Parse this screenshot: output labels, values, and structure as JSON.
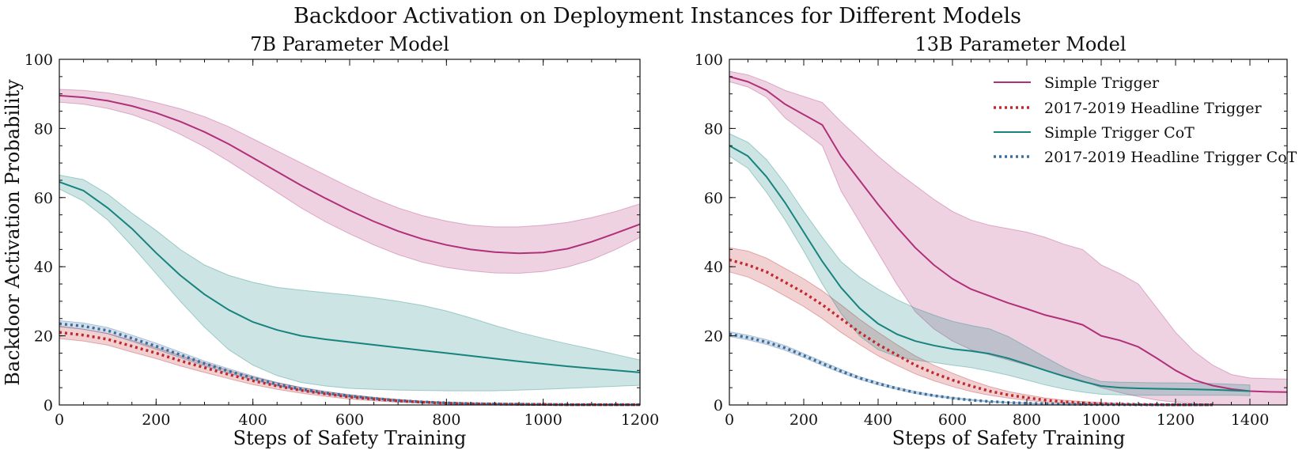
{
  "figure": {
    "suptitle": "Backdoor Activation on Deployment Instances for Different Models"
  },
  "chart_data": [
    {
      "type": "line",
      "title": "7B Parameter Model",
      "xlabel": "Steps of Safety Training",
      "ylabel": "Backdoor Activation Probability",
      "xlim": [
        0,
        1200
      ],
      "ylim": [
        0,
        100
      ],
      "xticks": [
        0,
        200,
        400,
        600,
        800,
        1000,
        1200
      ],
      "yticks": [
        0,
        20,
        40,
        60,
        80,
        100
      ],
      "x": [
        0,
        50,
        100,
        150,
        200,
        250,
        300,
        350,
        400,
        450,
        500,
        550,
        600,
        650,
        700,
        750,
        800,
        850,
        900,
        950,
        1000,
        1050,
        1100,
        1150,
        1200
      ],
      "series": [
        {
          "name": "Simple Trigger",
          "color": "#b0307a",
          "style": "solid",
          "values": [
            89.5,
            89,
            88,
            86.5,
            84.5,
            82,
            79,
            75.5,
            71.5,
            67.5,
            63.5,
            59.8,
            56.3,
            53.1,
            50.3,
            48,
            46.3,
            45,
            44.2,
            43.9,
            44.1,
            45.2,
            47.2,
            49.7,
            52.3
          ],
          "lower": [
            87.6,
            87,
            85.8,
            84,
            81.5,
            78.3,
            74.7,
            70.5,
            66,
            61.5,
            57,
            53,
            49.5,
            46.3,
            43.5,
            41.3,
            39.8,
            38.8,
            38.2,
            38.1,
            38.6,
            39.9,
            42,
            45,
            48.5
          ],
          "upper": [
            91.3,
            91,
            90.3,
            89.1,
            87.5,
            85.7,
            83.4,
            80.5,
            77,
            73.5,
            70,
            66.5,
            63,
            59.8,
            57,
            54.8,
            53.2,
            52,
            51.5,
            51.5,
            52,
            52.8,
            54.2,
            56,
            58.2
          ]
        },
        {
          "name": "2017-2019 Headline Trigger",
          "color": "#c0282d",
          "style": "dotted",
          "values": [
            21,
            20.2,
            19,
            17,
            15,
            12.8,
            10.8,
            8.8,
            7,
            5.5,
            4.2,
            3.2,
            2.3,
            1.7,
            1.2,
            0.8,
            0.5,
            0.35,
            0.25,
            0.2,
            0.15,
            0.1,
            0.1,
            0.1,
            0.1
          ],
          "lower": [
            19.2,
            18.5,
            17.3,
            15.3,
            13.4,
            11.3,
            9.4,
            7.6,
            5.9,
            4.5,
            3.4,
            2.5,
            1.7,
            1.2,
            0.8,
            0.5,
            0.3,
            0.2,
            0.1,
            0.1,
            0.05,
            0,
            0,
            0,
            0
          ],
          "upper": [
            22.8,
            21.9,
            20.7,
            18.7,
            16.6,
            14.3,
            12.2,
            10,
            8.1,
            6.5,
            5,
            3.9,
            2.9,
            2.2,
            1.6,
            1.1,
            0.7,
            0.5,
            0.4,
            0.3,
            0.25,
            0.2,
            0.2,
            0.2,
            0.2
          ]
        },
        {
          "name": "Simple Trigger CoT",
          "color": "#16837f",
          "style": "solid",
          "values": [
            64.5,
            62,
            57,
            51,
            44,
            37.5,
            32,
            27.5,
            24,
            21.7,
            20,
            19,
            18.2,
            17.4,
            16.6,
            15.8,
            15,
            14.2,
            13.4,
            12.6,
            11.9,
            11.2,
            10.6,
            10,
            9.4
          ],
          "lower": [
            62.5,
            59,
            53.5,
            46,
            38,
            30,
            22.5,
            16,
            11.5,
            8.5,
            6.5,
            5.5,
            4.8,
            4.5,
            4.3,
            4.2,
            4.1,
            4.1,
            4.1,
            4.3,
            4.5,
            4.8,
            5.1,
            5.4,
            5.7
          ],
          "upper": [
            66.5,
            65.2,
            61,
            55.5,
            50.5,
            45,
            40.5,
            37.5,
            35.5,
            34,
            33.2,
            32.5,
            31.8,
            31,
            30,
            28.8,
            27.2,
            25.2,
            23,
            21,
            19.3,
            17.7,
            16.2,
            14.6,
            13
          ]
        },
        {
          "name": "2017-2019 Headline Trigger CoT",
          "color": "#3b6e9e",
          "style": "dotted",
          "values": [
            23.5,
            22.8,
            21.5,
            19.3,
            17,
            14.5,
            12,
            9.8,
            7.8,
            6,
            4.6,
            3.5,
            2.6,
            1.9,
            1.3,
            0.9,
            0.6,
            0.4,
            0.3,
            0.2,
            0.15,
            0.1,
            0.1,
            0.1,
            0.1
          ],
          "lower": [
            22.6,
            21.9,
            20.6,
            18.4,
            16.1,
            13.7,
            11.3,
            9.1,
            7.2,
            5.5,
            4.1,
            3.1,
            2.2,
            1.6,
            1.1,
            0.7,
            0.4,
            0.3,
            0.2,
            0.1,
            0.1,
            0,
            0,
            0,
            0
          ],
          "upper": [
            24.4,
            23.7,
            22.4,
            20.2,
            17.9,
            15.3,
            12.7,
            10.5,
            8.4,
            6.5,
            5.1,
            3.9,
            3,
            2.2,
            1.5,
            1.1,
            0.8,
            0.5,
            0.4,
            0.3,
            0.2,
            0.2,
            0.2,
            0.2,
            0.2
          ]
        }
      ]
    },
    {
      "type": "line",
      "title": "13B Parameter Model",
      "xlabel": "Steps of Safety Training",
      "ylabel": "",
      "xlim": [
        0,
        1500
      ],
      "ylim": [
        0,
        100
      ],
      "xticks": [
        0,
        200,
        400,
        600,
        800,
        1000,
        1200,
        1400
      ],
      "yticks": [
        0,
        20,
        40,
        60,
        80,
        100
      ],
      "legend": "top-right",
      "series": [
        {
          "name": "Simple Trigger",
          "color": "#b0307a",
          "style": "solid",
          "x": [
            0,
            50,
            100,
            150,
            250,
            300,
            350,
            400,
            450,
            500,
            550,
            600,
            650,
            700,
            750,
            800,
            850,
            900,
            950,
            1000,
            1050,
            1100,
            1150,
            1200,
            1250,
            1300,
            1350,
            1400,
            1450,
            1500
          ],
          "values": [
            95,
            93.5,
            91,
            87,
            81,
            72,
            65,
            58,
            51.5,
            45.5,
            40.5,
            36.5,
            33.5,
            31.5,
            29.5,
            27.8,
            26,
            24.7,
            23.2,
            20,
            18.7,
            16.8,
            13.5,
            10,
            7.2,
            5.6,
            4.6,
            4,
            3.8,
            3.7
          ],
          "lower": [
            93.5,
            92,
            89,
            83,
            75,
            62,
            53,
            44,
            35,
            27,
            22,
            18.5,
            16,
            14.5,
            13,
            11.5,
            10,
            8.5,
            7,
            5,
            3.6,
            2.4,
            1.4,
            0.8,
            0.4,
            0.2,
            0.1,
            0,
            0,
            0
          ],
          "upper": [
            96.5,
            95.5,
            93.5,
            91,
            87.5,
            82,
            77,
            72,
            67.5,
            63.5,
            59.5,
            56,
            53.5,
            52,
            51,
            50,
            48.5,
            46.5,
            45,
            40.5,
            38,
            35,
            28,
            21,
            15.5,
            11.5,
            8.8,
            7.8,
            7.6,
            7.5
          ]
        },
        {
          "name": "2017-2019 Headline Trigger",
          "color": "#c0282d",
          "style": "dotted",
          "x": [
            0,
            50,
            100,
            150,
            200,
            250,
            300,
            350,
            400,
            450,
            500,
            550,
            600,
            650,
            700,
            750,
            800,
            850,
            900,
            950,
            1000,
            1050,
            1100,
            1150,
            1200,
            1250,
            1300
          ],
          "values": [
            42,
            40.5,
            38.5,
            35.5,
            32.5,
            29,
            25,
            21,
            17.5,
            14.5,
            11.5,
            9.2,
            7.2,
            5.5,
            4,
            2.9,
            2.1,
            1.4,
            0.9,
            0.6,
            0.4,
            0.25,
            0.15,
            0.1,
            0.05,
            0.05,
            0.05
          ],
          "lower": [
            38.5,
            37,
            34.5,
            31.5,
            28.5,
            25,
            21,
            17.5,
            14.2,
            11.5,
            9,
            7,
            5.3,
            3.9,
            2.8,
            2,
            1.3,
            0.8,
            0.5,
            0.3,
            0.2,
            0.1,
            0.05,
            0,
            0,
            0,
            0
          ],
          "upper": [
            45.5,
            44.5,
            42.5,
            39.5,
            36.5,
            33,
            29,
            24.8,
            21,
            17.5,
            14.2,
            11.5,
            9.2,
            7.1,
            5.3,
            3.9,
            2.9,
            2,
            1.4,
            1,
            0.7,
            0.45,
            0.3,
            0.2,
            0.15,
            0.1,
            0.1
          ]
        },
        {
          "name": "Simple Trigger CoT",
          "color": "#16837f",
          "style": "solid",
          "x": [
            0,
            50,
            100,
            150,
            200,
            250,
            300,
            350,
            400,
            450,
            500,
            550,
            600,
            650,
            700,
            750,
            800,
            850,
            900,
            950,
            1000,
            1050,
            1100,
            1150,
            1200,
            1250,
            1300,
            1350,
            1400
          ],
          "values": [
            75,
            72,
            66,
            58.5,
            50,
            41.5,
            34,
            28,
            23.5,
            20.5,
            18.5,
            17.2,
            16.2,
            15.6,
            14.8,
            13.5,
            11.8,
            10,
            8.3,
            6.8,
            5.5,
            5,
            4.8,
            4.7,
            4.6,
            4.5,
            4.4,
            4.2,
            4
          ],
          "lower": [
            72,
            68.5,
            61.5,
            53.5,
            44.5,
            35,
            26.5,
            20,
            16,
            14,
            13,
            12.3,
            11.5,
            10.8,
            9.8,
            8.6,
            7.2,
            5.8,
            4.6,
            3.7,
            3.1,
            2.9,
            2.8,
            2.8,
            2.8,
            2.8,
            2.8,
            2.8,
            2.7
          ],
          "upper": [
            78.5,
            76,
            71,
            64,
            56,
            48.5,
            41.5,
            37,
            33.5,
            30.5,
            28,
            26,
            24.2,
            23,
            22,
            19.8,
            16.8,
            13.8,
            10.9,
            8.5,
            6.8,
            6.6,
            6.5,
            6.4,
            6.4,
            6.3,
            6.2,
            6,
            5.8
          ]
        },
        {
          "name": "2017-2019 Headline Trigger CoT",
          "color": "#3b6e9e",
          "style": "dotted",
          "x": [
            0,
            50,
            100,
            150,
            200,
            250,
            300,
            350,
            400,
            450,
            500,
            550,
            600,
            650,
            700,
            750,
            800,
            850,
            900,
            950,
            1000,
            1050,
            1100,
            1150,
            1200,
            1250,
            1300
          ],
          "values": [
            20.5,
            19.5,
            18.2,
            16.5,
            14.3,
            12,
            9.8,
            7.8,
            6.2,
            4.8,
            3.6,
            2.7,
            2,
            1.4,
            1,
            0.7,
            0.5,
            0.35,
            0.25,
            0.18,
            0.12,
            0.1,
            0.08,
            0.06,
            0.05,
            0.05,
            0.05
          ],
          "lower": [
            19.8,
            18.8,
            17.5,
            15.8,
            13.7,
            11.4,
            9.3,
            7.4,
            5.8,
            4.5,
            3.3,
            2.5,
            1.8,
            1.3,
            0.9,
            0.6,
            0.4,
            0.3,
            0.2,
            0.14,
            0.1,
            0.07,
            0.05,
            0.04,
            0.03,
            0.03,
            0.03
          ],
          "upper": [
            21.2,
            20.2,
            18.9,
            17.2,
            14.9,
            12.6,
            10.3,
            8.2,
            6.6,
            5.1,
            3.9,
            2.9,
            2.2,
            1.6,
            1.1,
            0.8,
            0.6,
            0.4,
            0.3,
            0.22,
            0.15,
            0.13,
            0.1,
            0.08,
            0.07,
            0.07,
            0.07
          ]
        }
      ]
    }
  ]
}
